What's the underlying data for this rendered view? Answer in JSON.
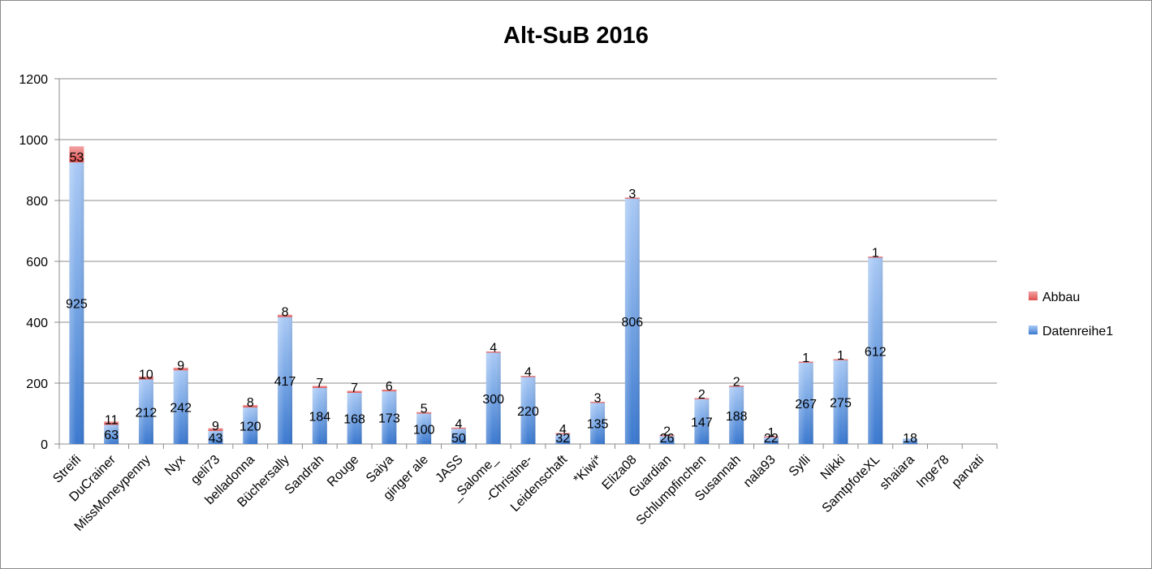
{
  "chart_data": {
    "type": "bar",
    "stacked": true,
    "title": "Alt-SuB 2016",
    "xlabel": "",
    "ylabel": "",
    "ylim": [
      0,
      1200
    ],
    "yticks": [
      "0",
      "200",
      "400",
      "600",
      "800",
      "1000",
      "1200"
    ],
    "grid": true,
    "legend_position": "right",
    "categories": [
      "Streifi",
      "DuCrainer",
      "MissMoneypenny",
      "Nyx",
      "geli73",
      "belladonna",
      "Büchersally",
      "Sandrah",
      "Rouge",
      "Saiya",
      "ginger ale",
      "JASS",
      "_Salome_",
      "-Christine-",
      "Leidenschaft",
      "*Kiwi*",
      "Eliza08",
      "Guardian",
      "Schlumpfinchen",
      "Susannah",
      "nala93",
      "Sylli",
      "Nikki",
      "SamtpfoteXL",
      "shaiara",
      "Inge78",
      "parvati"
    ],
    "series": [
      {
        "name": "Datenreihe1",
        "color": "#4f81bd",
        "values": [
          925,
          63,
          212,
          242,
          43,
          120,
          417,
          184,
          168,
          173,
          100,
          50,
          300,
          220,
          32,
          135,
          806,
          26,
          147,
          188,
          22,
          267,
          275,
          612,
          18,
          null,
          null
        ]
      },
      {
        "name": "Abbau",
        "color": "#e05c5c",
        "values": [
          53,
          11,
          10,
          9,
          9,
          8,
          8,
          7,
          7,
          6,
          5,
          4,
          4,
          4,
          4,
          3,
          3,
          2,
          2,
          2,
          1,
          1,
          1,
          1,
          null,
          null,
          null
        ]
      }
    ]
  }
}
